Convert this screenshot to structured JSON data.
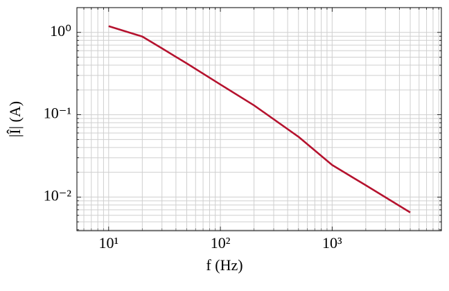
{
  "chart_data": {
    "type": "line",
    "x_label": "f (Hz)",
    "y_label": "|Î| (A)",
    "x": [
      10,
      20,
      30,
      50,
      100,
      200,
      500,
      1000,
      2000,
      5000
    ],
    "series": [
      {
        "color": "#b5122e",
        "values": [
          1.19,
          0.89,
          0.64,
          0.42,
          0.233,
          0.13,
          0.054,
          0.0245,
          0.0139,
          0.0065
        ]
      }
    ],
    "xscale": "log",
    "yscale": "log",
    "xlim": [
      5.2,
      9500
    ],
    "ylim": [
      0.0039,
      2.0
    ],
    "xticks": [
      {
        "value": 10,
        "label": "10¹"
      },
      {
        "value": 100,
        "label": "10²"
      },
      {
        "value": 1000,
        "label": "10³"
      }
    ],
    "yticks": [
      {
        "value": 0.01,
        "label": "10⁻²"
      },
      {
        "value": 0.1,
        "label": "10⁻¹"
      },
      {
        "value": 1,
        "label": "10⁰"
      }
    ],
    "xminorticks": [
      6,
      7,
      8,
      9,
      20,
      30,
      40,
      50,
      60,
      70,
      80,
      90,
      200,
      300,
      400,
      500,
      600,
      700,
      800,
      900,
      2000,
      3000,
      4000,
      5000,
      6000,
      7000,
      8000,
      9000
    ],
    "yminorticks": [
      0.004,
      0.005,
      0.006,
      0.007,
      0.008,
      0.009,
      0.02,
      0.03,
      0.04,
      0.05,
      0.06,
      0.07,
      0.08,
      0.09,
      0.2,
      0.3,
      0.4,
      0.5,
      0.6,
      0.7,
      0.8,
      0.9,
      2
    ],
    "grid": true
  }
}
